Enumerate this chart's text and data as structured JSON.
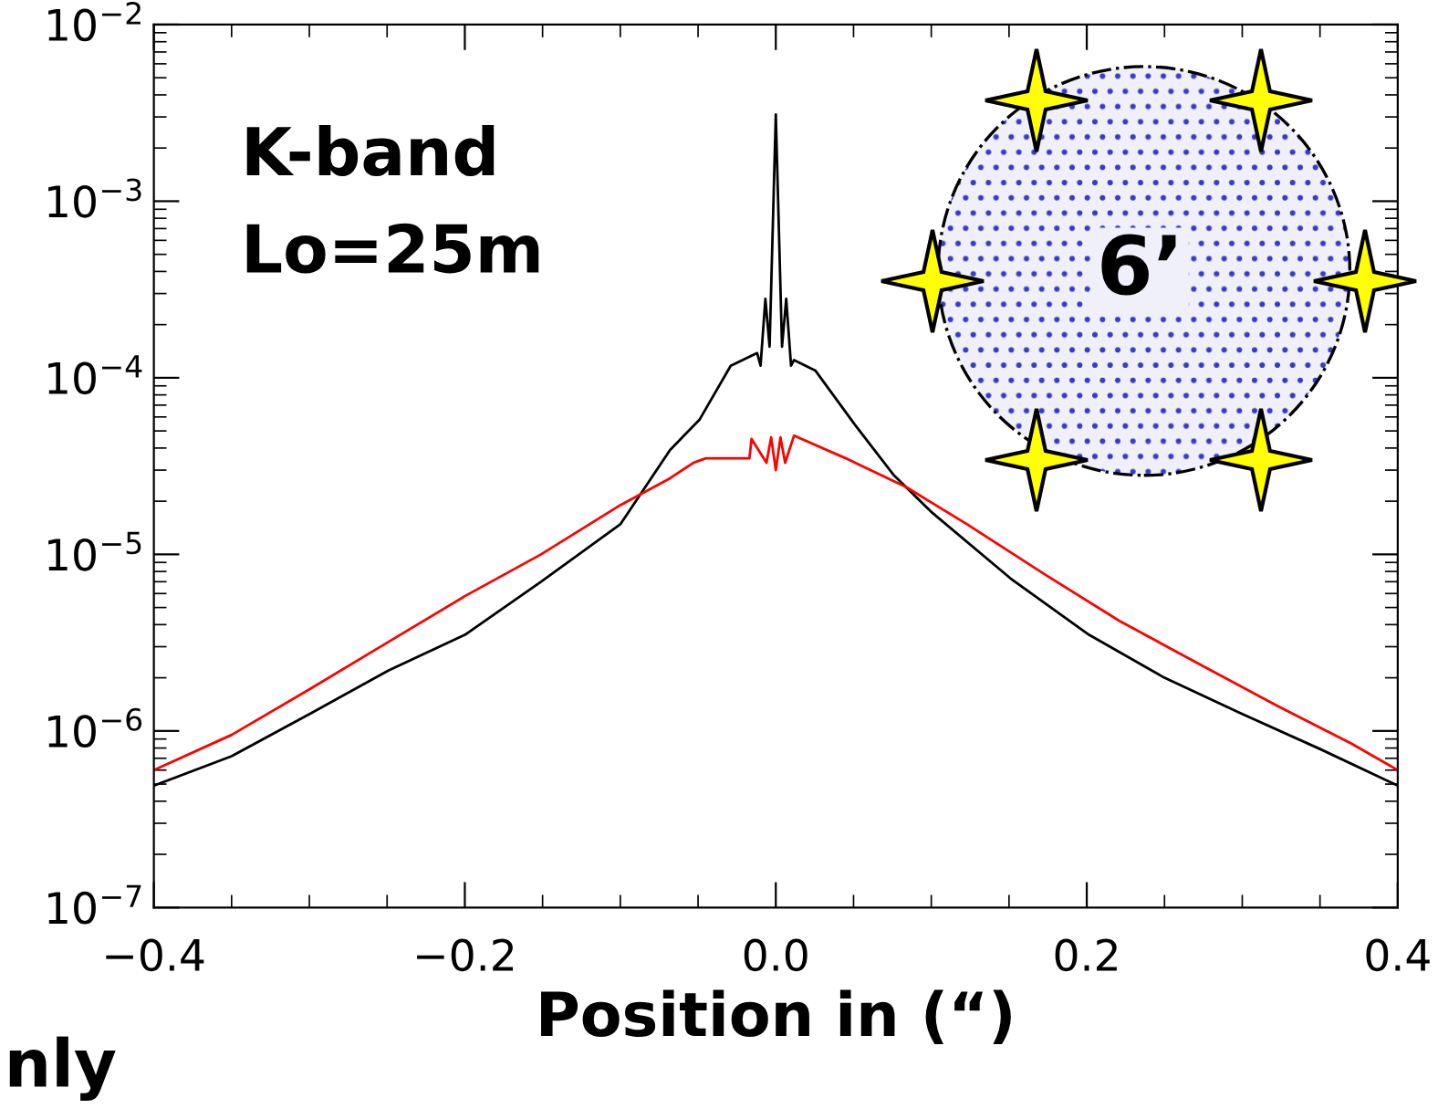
{
  "chart_data": {
    "type": "line",
    "xlabel": "Position in (“)",
    "series": [
      {
        "color": "#000000",
        "x": [
          -0.4,
          -0.35,
          -0.299,
          -0.249,
          -0.2,
          -0.151,
          -0.1,
          -0.068,
          -0.049,
          -0.029,
          -0.012,
          -0.0098,
          -0.0067,
          -0.004,
          0,
          0.004,
          0.0067,
          0.0098,
          0.0117,
          0.0254,
          0.051,
          0.076,
          0.1,
          0.151,
          0.2015,
          0.25,
          0.299,
          0.35,
          0.4
        ],
        "values": [
          4.9e-07,
          7.2e-07,
          1.26e-06,
          2.2e-06,
          3.5e-06,
          7e-06,
          1.48e-05,
          3.9e-05,
          5.8e-05,
          0.000117,
          0.000138,
          0.000117,
          0.00028,
          0.00015,
          0.0031,
          0.00015,
          0.00028,
          0.000117,
          0.000126,
          0.00011,
          5.4e-05,
          2.8e-05,
          1.74e-05,
          7.3e-06,
          3.5e-06,
          2e-06,
          1.26e-06,
          7.9e-07,
          4.9e-07
        ]
      },
      {
        "color": "#ff0000",
        "x": [
          -0.4,
          -0.35,
          -0.299,
          -0.249,
          -0.2,
          -0.151,
          -0.1,
          -0.068,
          -0.053,
          -0.045,
          -0.017,
          -0.0156,
          -0.006,
          -0.003,
          0,
          0.003,
          0.006,
          0.0117,
          0.045,
          0.084,
          0.123,
          0.174,
          0.221,
          0.272,
          0.323,
          0.37,
          0.4
        ],
        "values": [
          6e-07,
          9.5e-07,
          1.74e-06,
          3.2e-06,
          5.8e-06,
          1e-05,
          1.9e-05,
          2.7e-05,
          3.3e-05,
          3.5e-05,
          3.5e-05,
          4.5e-05,
          3.3e-05,
          4.6e-05,
          3e-05,
          4.6e-05,
          3.3e-05,
          4.7e-05,
          3.5e-05,
          2.4e-05,
          1.48e-05,
          7.6e-06,
          4.2e-06,
          2.4e-06,
          1.38e-06,
          8.5e-07,
          6e-07
        ]
      }
    ],
    "log": "y",
    "xlim": [
      -0.4,
      0.4
    ],
    "xticks": [
      {
        "value": -0.4,
        "label": "−0.4"
      },
      {
        "value": -0.2,
        "label": "−0.2"
      },
      {
        "value": 0,
        "label": "0.0"
      },
      {
        "value": 0.2,
        "label": "0.2"
      },
      {
        "value": 0.4,
        "label": "0.4"
      }
    ],
    "ylim": [
      1e-07,
      0.01
    ],
    "yticks": [
      {
        "value": 1e-07,
        "label": "10$^{−7}$"
      },
      {
        "value": 1e-06,
        "label": "10$^{−6}$"
      },
      {
        "value": 1e-05,
        "label": "10$^{−5}$"
      },
      {
        "value": 0.0001,
        "label": "10$^{−4}$"
      },
      {
        "value": 0.001,
        "label": "10$^{−3}$"
      },
      {
        "value": 0.01,
        "label": "10$^{−2}$"
      }
    ],
    "grid": false,
    "line_style": "solid",
    "annotations": [
      "K-band",
      "Lo=25m",
      "6’",
      "nly"
    ]
  }
}
